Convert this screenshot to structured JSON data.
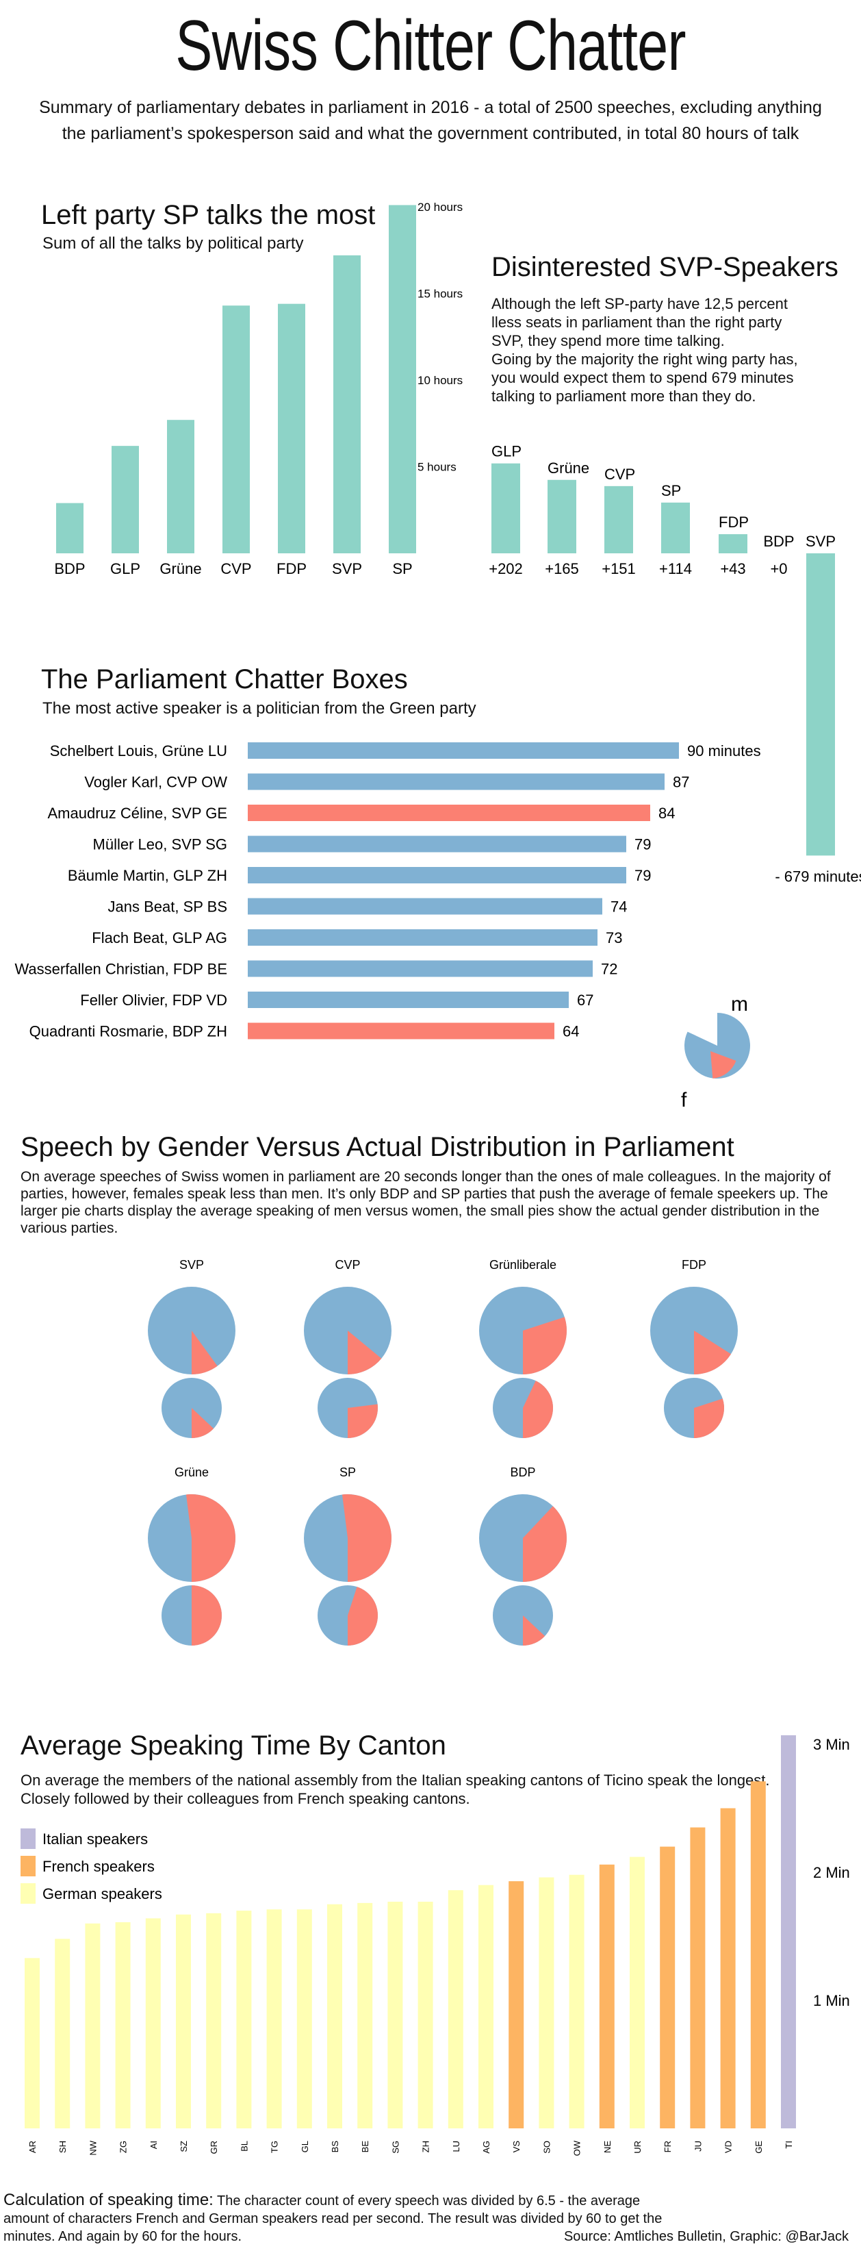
{
  "title": "Swiss Chitter Chatter",
  "subtitle": "Summary of parliamentary debates in parliament in 2016 - a total of 2500 speeches, excluding anything the parliament’s spokesperson said and what the government contributed, in total 80 hours of talk",
  "colors": {
    "teal": "#8dd3c7",
    "blue": "#80b1d3",
    "salmon": "#fb8072",
    "lavender": "#bebada",
    "orange": "#fdb462",
    "yellow": "#ffffb3"
  },
  "section1": {
    "title": "Left party SP talks the most",
    "subtitle": "Sum of all the talks by political party"
  },
  "section2": {
    "title": "Disinterested SVP-Speakers",
    "text1": "Although the left SP-party have 12,5 percent",
    "text2": "lless seats in parliament than the right party",
    "text3": "SVP, they spend more time talking.",
    "text4": "Going by the majority the right wing party has,",
    "text5": "you would expect them to spend 679 minutes",
    "text6": "talking to parliament more than they do."
  },
  "section3": {
    "title": "The Parliament Chatter Boxes",
    "subtitle": "The most active speaker is a politician from the Green party",
    "pie_m": "m",
    "pie_f": "f"
  },
  "section4": {
    "title": "Speech by Gender Versus Actual Distribution in Parliament",
    "text1": "On average speeches of Swiss women in parliament are 20 seconds longer than the ones of male colleagues. In the majority of",
    "text2": "parties, however, females speak less than men. It’s only BDP and SP parties that push the average of female speekers up. The",
    "text3": "larger pie charts display the average speaking of men versus women, the small pies show the actual gender distribution in the",
    "text4": "various parties."
  },
  "section5": {
    "title": "Average Speaking Time By Canton",
    "text1": "On average the members of the national assembly from the Italian speaking cantons of Ticino speak the longest.",
    "text2": "Closely followed by their colleagues from French speaking cantons.",
    "legend": [
      "Italian speakers",
      "French speakers",
      "German speakers"
    ]
  },
  "footer": {
    "calc_label": "Calculation of speaking time:",
    "calc_text1": " The character count of every speech was divided by 6.5 - the average",
    "calc_text2": "amount of characters French and German speakers read per second. The result was divided by 60 to get the",
    "calc_text3": "minutes. And again by 60 for the hours.",
    "source": "Source: Amtliches Bulletin, Graphic: @BarJack"
  },
  "chart_data": [
    {
      "type": "bar",
      "title": "Left party SP talks the most",
      "subtitle": "Sum of all the talks by political party",
      "categories": [
        "BDP",
        "GLP",
        "Grüne",
        "CVP",
        "FDP",
        "SVP",
        "SP"
      ],
      "values": [
        2.9,
        6.2,
        7.7,
        14.3,
        14.4,
        17.2,
        20.1
      ],
      "unit": "hours",
      "ticks": [
        5,
        10,
        15,
        20
      ],
      "tick_labels": [
        "5 hours",
        "10 hours",
        "15 hours",
        "20 hours"
      ],
      "ylim": [
        0,
        20
      ]
    },
    {
      "type": "bar",
      "title": "Disinterested SVP-Speakers",
      "categories": [
        "GLP",
        "Grüne",
        "CVP",
        "SP",
        "FDP",
        "BDP",
        "SVP"
      ],
      "values": [
        202,
        165,
        151,
        114,
        43,
        0,
        -679
      ],
      "labels": [
        "+202",
        "+165",
        "+151",
        "+114",
        "+43",
        "+0",
        "- 679 minutes"
      ]
    },
    {
      "type": "bar",
      "orientation": "horizontal",
      "title": "The Parliament Chatter Boxes",
      "subtitle": "The most active speaker is a politician from the Green party",
      "categories": [
        "Schelbert Louis, Grüne LU",
        "Vogler Karl, CVP OW",
        "Amaudruz Céline, SVP GE",
        "Müller Leo, SVP SG",
        "Bäumle Martin, GLP ZH",
        "Jans Beat, SP BS",
        "Flach Beat, GLP AG",
        "Wasserfallen Christian, FDP BE",
        "Feller Olivier, FDP VD",
        "Quadranti Rosmarie, BDP ZH"
      ],
      "values": [
        90,
        87,
        84,
        79,
        79,
        74,
        73,
        72,
        67,
        64
      ],
      "value_labels": [
        "90 minutes",
        "87",
        "84",
        "79",
        "79",
        "74",
        "73",
        "72",
        "67",
        "64"
      ],
      "gender": [
        "m",
        "m",
        "f",
        "m",
        "m",
        "m",
        "m",
        "m",
        "m",
        "f"
      ]
    },
    {
      "type": "pie",
      "title": "Speech by Gender Versus Actual Distribution in Parliament",
      "series": [
        {
          "name": "SVP",
          "speaking_female": 0.1,
          "seats_female": 0.13
        },
        {
          "name": "CVP",
          "speaking_female": 0.14,
          "seats_female": 0.27
        },
        {
          "name": "Grünliberale",
          "speaking_female": 0.3,
          "seats_female": 0.43
        },
        {
          "name": "FDP",
          "speaking_female": 0.16,
          "seats_female": 0.3
        },
        {
          "name": "Grüne",
          "speaking_female": 0.52,
          "seats_female": 0.5
        },
        {
          "name": "SP",
          "speaking_female": 0.52,
          "seats_female": 0.45
        },
        {
          "name": "BDP",
          "speaking_female": 0.38,
          "seats_female": 0.13
        }
      ]
    },
    {
      "type": "bar",
      "title": "Average Speaking Time By Canton",
      "categories": [
        "AR",
        "SH",
        "NW",
        "ZG",
        "AI",
        "SZ",
        "GR",
        "BL",
        "TG",
        "GL",
        "BS",
        "BE",
        "SG",
        "ZH",
        "LU",
        "AG",
        "VS",
        "SO",
        "OW",
        "NE",
        "UR",
        "FR",
        "JU",
        "VD",
        "GE",
        "TI"
      ],
      "values": [
        1.33,
        1.48,
        1.6,
        1.61,
        1.64,
        1.67,
        1.68,
        1.7,
        1.71,
        1.71,
        1.75,
        1.76,
        1.77,
        1.77,
        1.86,
        1.9,
        1.93,
        1.96,
        1.98,
        2.06,
        2.12,
        2.2,
        2.35,
        2.5,
        2.71,
        3.07
      ],
      "language": [
        "German",
        "German",
        "German",
        "German",
        "German",
        "German",
        "German",
        "German",
        "German",
        "German",
        "German",
        "German",
        "German",
        "German",
        "German",
        "German",
        "French",
        "German",
        "German",
        "French",
        "German",
        "French",
        "French",
        "French",
        "French",
        "Italian"
      ],
      "tick_labels": [
        "1 Min",
        "2 Min",
        "3 Min"
      ],
      "ticks": [
        1,
        2,
        3
      ],
      "legend": [
        "Italian speakers",
        "French speakers",
        "German speakers"
      ]
    }
  ]
}
